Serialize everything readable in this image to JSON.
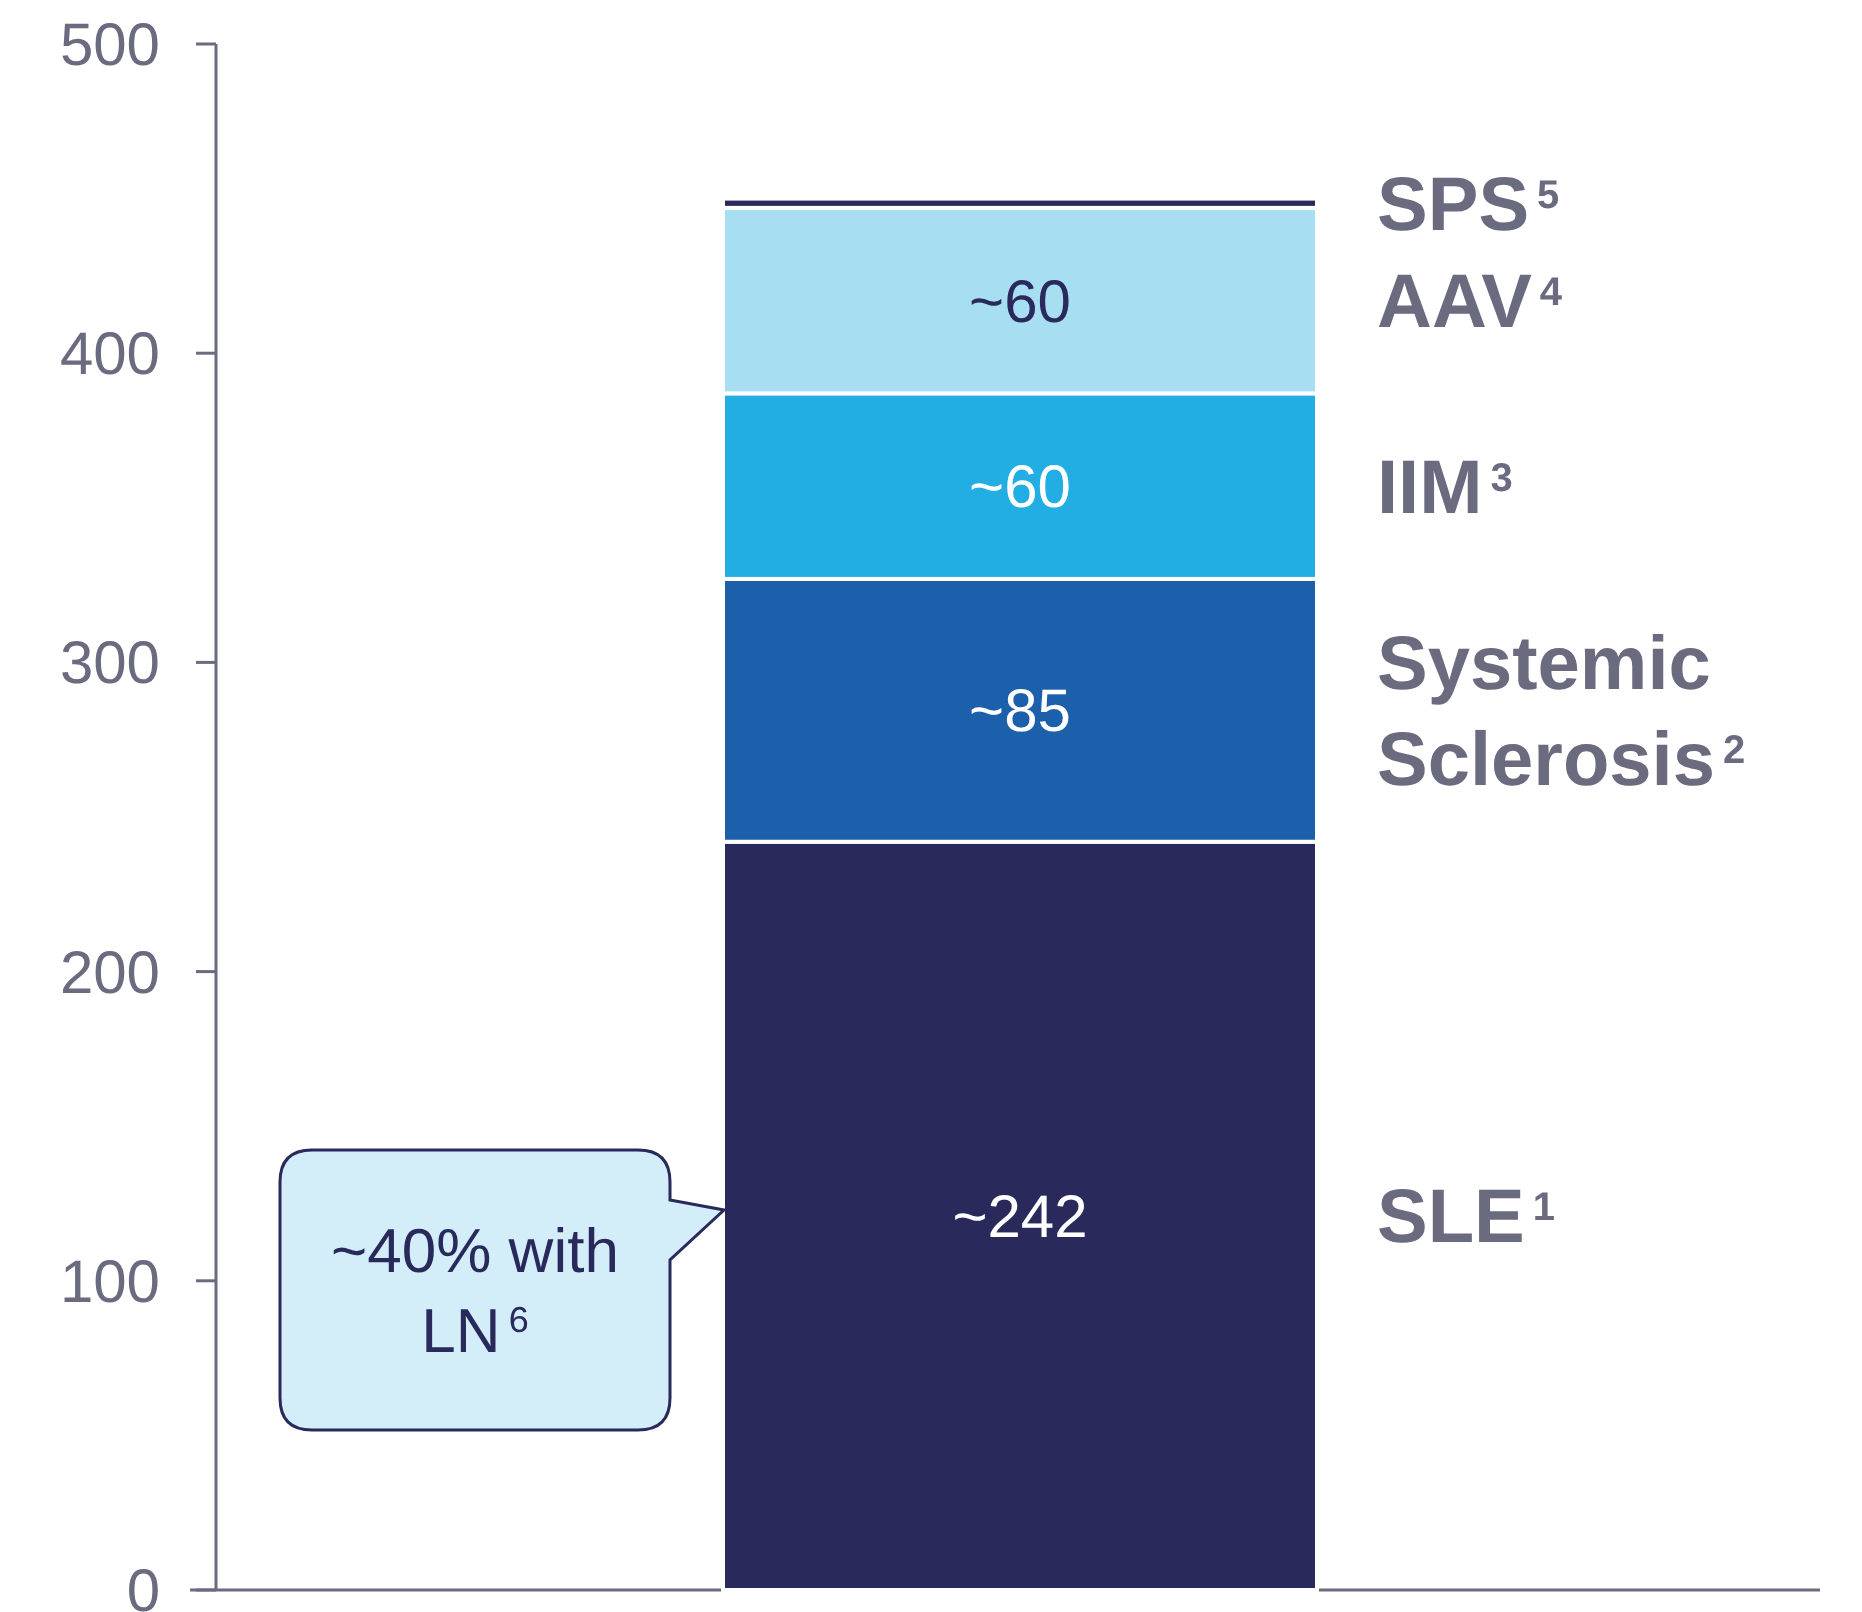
{
  "chart_data": {
    "type": "bar",
    "stacked": true,
    "categories": [
      null
    ],
    "series": [
      {
        "name": "SLE$^{1}$",
        "color": "#29295c",
        "values": [
          242
        ],
        "value_labels": [
          "~242"
        ]
      },
      {
        "name": "Systemic Sclerosis$^{2}$",
        "color": "#1c5fab",
        "values": [
          85
        ],
        "value_labels": [
          "~85"
        ]
      },
      {
        "name": "IIM$^{3}$",
        "color": "#23aee3",
        "values": [
          60
        ],
        "value_labels": [
          "~60"
        ]
      },
      {
        "name": "AAV$^{4}$",
        "color": "#a8def2",
        "values": [
          60
        ],
        "value_labels": [
          "~60"
        ]
      },
      {
        "name": "SPS$^{5}$",
        "color": "#29295c",
        "values": [
          3
        ],
        "value_labels": [
          null
        ]
      }
    ],
    "ylim": [
      0,
      500
    ],
    "yticks": [
      0,
      100,
      200,
      300,
      400,
      500
    ],
    "grid": false,
    "annotations": [
      "~40% with LN$^{6}$"
    ]
  }
}
